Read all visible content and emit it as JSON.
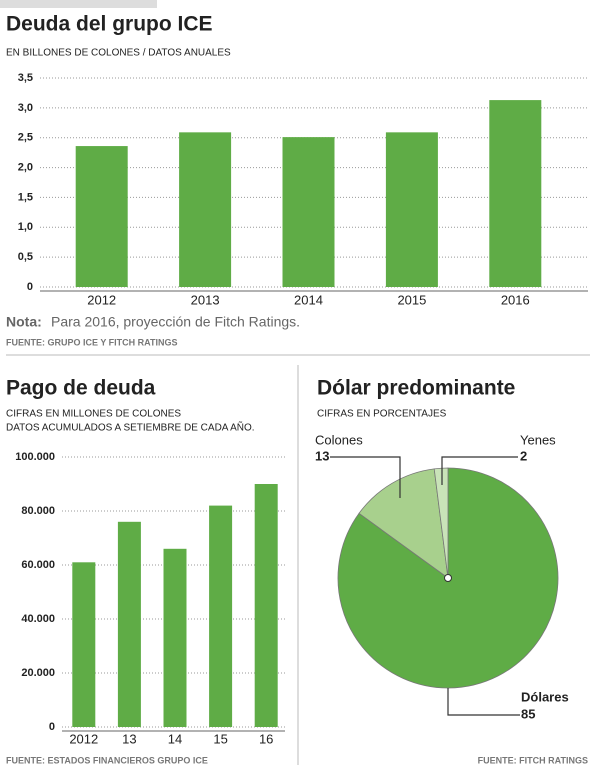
{
  "chart_data": [
    {
      "type": "bar",
      "title": "Deuda del grupo ICE",
      "subtitle": [
        "EN BILLONES DE COLONES / DATOS ANUALES"
      ],
      "categories": [
        "2012",
        "2013",
        "2014",
        "2015",
        "2016"
      ],
      "values": [
        2.36,
        2.59,
        2.51,
        2.59,
        3.13
      ],
      "color": "#5fac46",
      "ylim": [
        0,
        3.5
      ],
      "yticks": [
        {
          "value": 0,
          "label": "0"
        },
        {
          "value": 0.5,
          "label": "0,5"
        },
        {
          "value": 1,
          "label": "1,0"
        },
        {
          "value": 1.5,
          "label": "1,5"
        },
        {
          "value": 2,
          "label": "2,0"
        },
        {
          "value": 2.5,
          "label": "2,5"
        },
        {
          "value": 3,
          "label": "3,0"
        },
        {
          "value": 3.5,
          "label": "3,5"
        }
      ],
      "grid": true,
      "note_label": "Nota:",
      "note": "Para 2016, proyección de Fitch Ratings.",
      "source": "FUENTE: GRUPO ICE Y FITCH RATINGS"
    },
    {
      "type": "bar",
      "title": "Pago de deuda",
      "subtitle": [
        "CIFRAS EN MILLONES DE COLONES",
        "DATOS ACUMULADOS A SETIEMBRE DE CADA AÑO."
      ],
      "categories": [
        "2012",
        "13",
        "14",
        "15",
        "16"
      ],
      "values": [
        61000,
        76000,
        66000,
        82000,
        90000
      ],
      "color": "#5fac46",
      "ylim": [
        0,
        100000
      ],
      "yticks": [
        0,
        {
          "value": 20000,
          "label": "20.000"
        },
        {
          "value": 40000,
          "label": "40.000"
        },
        {
          "value": 60000,
          "label": "60.000"
        },
        {
          "value": 80000,
          "label": "80.000"
        },
        {
          "value": 100000,
          "label": "100.000"
        }
      ],
      "grid": true,
      "source": "FUENTE: ESTADOS FINANCIEROS GRUPO ICE"
    },
    {
      "type": "pie",
      "title": "Dólar predominante",
      "subtitle": [
        "CIFRAS EN PORCENTAJES"
      ],
      "categories": [
        "Dólares",
        "Colones",
        "Yenes"
      ],
      "values": [
        85,
        13,
        2
      ],
      "colors": [
        "#5fac46",
        "#a8d08d",
        "#c9e3b8"
      ],
      "source": "FUENTE: FITCH RATINGS"
    }
  ]
}
